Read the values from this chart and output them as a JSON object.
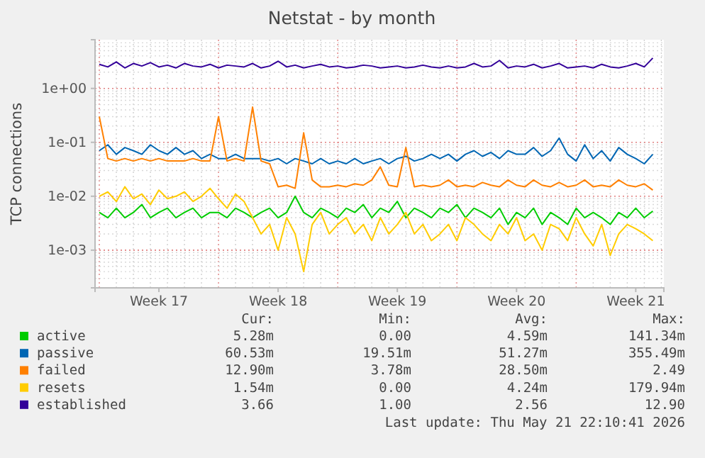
{
  "chart_data": {
    "type": "line",
    "title": "Netstat - by month",
    "ylabel": "TCP connections",
    "log": "y",
    "grid": true,
    "legend": "bottom",
    "marker": "none",
    "line_style": "solid",
    "ylim": [
      0.0002,
      8
    ],
    "yticks": [
      {
        "value": 1,
        "label": "1e+00"
      },
      {
        "value": 0.1,
        "label": "1e-01"
      },
      {
        "value": 0.01,
        "label": "1e-02"
      },
      {
        "value": 0.001,
        "label": "1e-03"
      }
    ],
    "categories": [
      null,
      null,
      null,
      null,
      null,
      null,
      null,
      "Week 17",
      null,
      null,
      null,
      null,
      null,
      null,
      null,
      null,
      null,
      null,
      null,
      null,
      null,
      "Week 18",
      null,
      null,
      null,
      null,
      null,
      null,
      null,
      null,
      null,
      null,
      null,
      null,
      null,
      "Week 19",
      null,
      null,
      null,
      null,
      null,
      null,
      null,
      null,
      null,
      null,
      null,
      null,
      null,
      "Week 20",
      null,
      null,
      null,
      null,
      null,
      null,
      null,
      null,
      null,
      null,
      null,
      null,
      null,
      "Week 21",
      null,
      null
    ],
    "series": [
      {
        "name": "active",
        "color": "#00cc00",
        "values": [
          0.005,
          0.004,
          0.006,
          0.004,
          0.005,
          0.007,
          0.004,
          0.005,
          0.006,
          0.004,
          0.005,
          0.006,
          0.004,
          0.005,
          0.005,
          0.004,
          0.006,
          0.005,
          0.004,
          0.005,
          0.006,
          0.004,
          0.005,
          0.01,
          0.005,
          0.004,
          0.006,
          0.005,
          0.004,
          0.006,
          0.005,
          0.007,
          0.004,
          0.006,
          0.005,
          0.008,
          0.004,
          0.006,
          0.005,
          0.004,
          0.006,
          0.005,
          0.007,
          0.004,
          0.006,
          0.005,
          0.004,
          0.006,
          0.003,
          0.005,
          0.004,
          0.006,
          0.003,
          0.005,
          0.004,
          0.003,
          0.006,
          0.004,
          0.005,
          0.004,
          0.003,
          0.005,
          0.004,
          0.006,
          0.004,
          0.0053
        ]
      },
      {
        "name": "passive",
        "color": "#0066b3",
        "values": [
          0.07,
          0.09,
          0.06,
          0.08,
          0.07,
          0.06,
          0.09,
          0.07,
          0.06,
          0.08,
          0.06,
          0.07,
          0.05,
          0.06,
          0.05,
          0.05,
          0.06,
          0.05,
          0.05,
          0.05,
          0.045,
          0.05,
          0.04,
          0.05,
          0.045,
          0.04,
          0.05,
          0.04,
          0.045,
          0.04,
          0.05,
          0.04,
          0.045,
          0.05,
          0.04,
          0.05,
          0.055,
          0.045,
          0.05,
          0.06,
          0.05,
          0.06,
          0.045,
          0.06,
          0.07,
          0.055,
          0.065,
          0.05,
          0.07,
          0.06,
          0.06,
          0.08,
          0.055,
          0.07,
          0.12,
          0.06,
          0.045,
          0.09,
          0.05,
          0.07,
          0.045,
          0.08,
          0.06,
          0.05,
          0.04,
          0.06
        ]
      },
      {
        "name": "failed",
        "color": "#ff8000",
        "values": [
          0.3,
          0.05,
          0.045,
          0.05,
          0.045,
          0.05,
          0.045,
          0.05,
          0.045,
          0.045,
          0.045,
          0.05,
          0.045,
          0.045,
          0.3,
          0.045,
          0.05,
          0.045,
          0.45,
          0.045,
          0.04,
          0.015,
          0.016,
          0.014,
          0.15,
          0.02,
          0.015,
          0.015,
          0.016,
          0.015,
          0.017,
          0.016,
          0.02,
          0.035,
          0.016,
          0.015,
          0.08,
          0.015,
          0.016,
          0.015,
          0.016,
          0.02,
          0.015,
          0.016,
          0.015,
          0.018,
          0.016,
          0.015,
          0.02,
          0.016,
          0.015,
          0.02,
          0.016,
          0.015,
          0.018,
          0.015,
          0.016,
          0.02,
          0.015,
          0.016,
          0.015,
          0.02,
          0.016,
          0.015,
          0.017,
          0.013
        ]
      },
      {
        "name": "resets",
        "color": "#ffcc00",
        "values": [
          0.01,
          0.012,
          0.008,
          0.015,
          0.009,
          0.011,
          0.007,
          0.013,
          0.009,
          0.01,
          0.012,
          0.008,
          0.01,
          0.014,
          0.009,
          0.006,
          0.011,
          0.008,
          0.004,
          0.002,
          0.003,
          0.001,
          0.004,
          0.002,
          0.0004,
          0.003,
          0.005,
          0.002,
          0.003,
          0.004,
          0.002,
          0.003,
          0.0015,
          0.004,
          0.002,
          0.003,
          0.005,
          0.002,
          0.003,
          0.0015,
          0.002,
          0.003,
          0.0015,
          0.004,
          0.003,
          0.002,
          0.0015,
          0.003,
          0.002,
          0.004,
          0.0015,
          0.002,
          0.001,
          0.003,
          0.0025,
          0.0015,
          0.004,
          0.002,
          0.0012,
          0.003,
          0.0008,
          0.002,
          0.003,
          0.0025,
          0.002,
          0.0015
        ]
      },
      {
        "name": "established",
        "color": "#330099",
        "values": [
          2.8,
          2.5,
          3.1,
          2.4,
          2.9,
          2.6,
          3.0,
          2.5,
          2.7,
          2.4,
          2.9,
          2.6,
          2.5,
          2.8,
          2.4,
          2.7,
          2.6,
          2.5,
          2.9,
          2.4,
          2.6,
          3.2,
          2.5,
          2.7,
          2.4,
          2.6,
          2.8,
          2.5,
          2.6,
          2.4,
          2.5,
          2.7,
          2.6,
          2.4,
          2.5,
          2.6,
          2.4,
          2.5,
          2.7,
          2.5,
          2.4,
          2.6,
          2.4,
          2.5,
          2.9,
          2.5,
          2.6,
          3.3,
          2.4,
          2.6,
          2.5,
          2.8,
          2.4,
          2.6,
          2.9,
          2.4,
          2.5,
          2.6,
          2.4,
          2.8,
          2.5,
          2.4,
          2.6,
          2.9,
          2.5,
          3.66
        ]
      }
    ],
    "annotations": [
      "Cur:",
      "Min:",
      "Avg:",
      "Max:",
      "5.28m",
      "0.00",
      "4.59m",
      "141.34m",
      "60.53m",
      "19.51m",
      "51.27m",
      "355.49m",
      "12.90m",
      "3.78m",
      "28.50m",
      "2.49",
      "1.54m",
      "0.00",
      "4.24m",
      "179.94m",
      "3.66",
      "1.00",
      "2.56",
      "12.90",
      "Last update: Thu May 21 22:10:41 2026"
    ]
  }
}
